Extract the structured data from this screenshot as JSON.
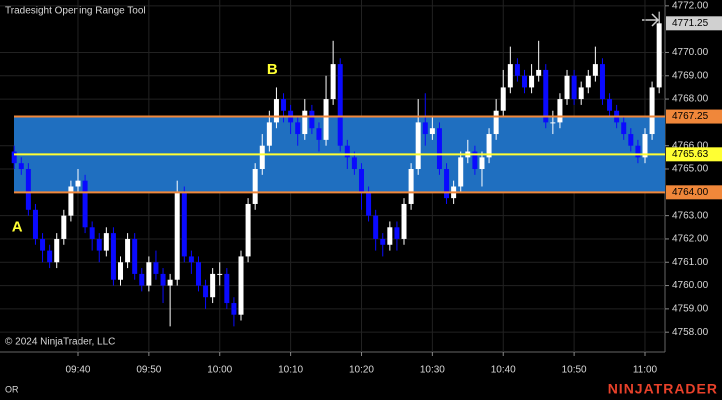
{
  "chart_data": {
    "type": "candlestick",
    "title": "Tradesight Opening Range Tool",
    "copyright": "© 2024 NinjaTrader, LLC",
    "footer_left": "OR",
    "brand": "NINJATRADER",
    "annotations": [
      {
        "text": "A",
        "x_index": 0,
        "y": 4762.5
      },
      {
        "text": "B",
        "x_index": 36,
        "y": 4769.25
      }
    ],
    "categories": [
      null,
      null,
      null,
      null,
      null,
      null,
      null,
      null,
      null,
      "09:40",
      null,
      null,
      null,
      null,
      null,
      null,
      null,
      null,
      null,
      "09:50",
      null,
      null,
      null,
      null,
      null,
      null,
      null,
      null,
      null,
      "10:00",
      null,
      null,
      null,
      null,
      null,
      null,
      null,
      null,
      null,
      "10:10",
      null,
      null,
      null,
      null,
      null,
      null,
      null,
      null,
      null,
      "10:20",
      null,
      null,
      null,
      null,
      null,
      null,
      null,
      null,
      null,
      "10:30",
      null,
      null,
      null,
      null,
      null,
      null,
      null,
      null,
      null,
      "10:40",
      null,
      null,
      null,
      null,
      null,
      null,
      null,
      null,
      null,
      "10:50",
      null,
      null,
      null,
      null,
      null,
      null,
      null,
      null,
      null,
      "11:00",
      null,
      null
    ],
    "open": [
      4765.75,
      4765.25,
      4765.0,
      4763.25,
      4762.0,
      4761.5,
      4761.0,
      4762.0,
      4763.0,
      4764.25,
      4764.5,
      4762.5,
      4762.0,
      4761.5,
      4762.25,
      4760.25,
      4761.0,
      4762.0,
      4760.5,
      4760.0,
      4761.0,
      4760.5,
      4760.0,
      4760.25,
      4764.0,
      4761.25,
      4761.0,
      4760.0,
      4759.5,
      4760.5,
      4760.5,
      4759.25,
      4758.75,
      4761.25,
      4763.5,
      4765.0,
      4766.0,
      4767.0,
      4768.0,
      4767.5,
      4767.0,
      4766.5,
      4767.5,
      4766.75,
      4766.25,
      4768.0,
      4769.5,
      4766.0,
      4765.5,
      4765.0,
      4764.0,
      4763.0,
      4762.0,
      4761.75,
      4762.5,
      4762.0,
      4763.5,
      4765.0,
      4767.0,
      4766.5,
      4766.75,
      4765.0,
      4763.75,
      4764.25,
      4765.5,
      4765.75,
      4765.0,
      4765.5,
      4766.5,
      4767.5,
      4768.5,
      4769.5,
      4769.0,
      4768.5,
      4769.0,
      4769.25,
      4767.0,
      4767.0,
      4768.0,
      4769.0,
      4768.0,
      4768.5,
      4769.0,
      4769.5,
      4768.0,
      4767.5,
      4767.0,
      4766.5,
      4766.0,
      4765.5,
      4766.5,
      4768.5
    ],
    "high": [
      4766.0,
      4765.5,
      4765.25,
      4763.5,
      4762.25,
      4761.75,
      4762.25,
      4763.25,
      4764.5,
      4765.0,
      4764.75,
      4762.75,
      4762.25,
      4762.5,
      4762.5,
      4761.25,
      4762.25,
      4762.25,
      4760.75,
      4761.25,
      4761.5,
      4760.75,
      4760.5,
      4764.5,
      4764.25,
      4761.5,
      4761.25,
      4760.25,
      4760.75,
      4761.0,
      4760.75,
      4759.5,
      4761.5,
      4763.75,
      4765.25,
      4766.5,
      4767.5,
      4768.5,
      4768.25,
      4767.75,
      4767.25,
      4768.0,
      4767.75,
      4767.0,
      4769.0,
      4770.5,
      4769.75,
      4766.25,
      4765.75,
      4765.25,
      4764.25,
      4763.25,
      4762.25,
      4762.75,
      4762.75,
      4763.75,
      4765.25,
      4768.0,
      4768.25,
      4767.25,
      4767.0,
      4765.25,
      4764.5,
      4765.75,
      4766.25,
      4766.0,
      4765.75,
      4766.75,
      4768.0,
      4769.25,
      4770.25,
      4769.75,
      4769.25,
      4769.5,
      4770.5,
      4769.5,
      4767.5,
      4768.25,
      4769.25,
      4769.25,
      4768.75,
      4769.25,
      4770.25,
      4769.75,
      4768.25,
      4767.75,
      4767.25,
      4766.75,
      4766.25,
      4766.75,
      4768.75,
      4771.75
    ],
    "low": [
      4765.0,
      4764.75,
      4763.0,
      4761.75,
      4761.0,
      4760.75,
      4760.75,
      4761.75,
      4762.75,
      4764.0,
      4762.25,
      4761.5,
      4761.0,
      4761.25,
      4760.0,
      4760.0,
      4760.75,
      4760.25,
      4759.75,
      4759.75,
      4760.25,
      4759.25,
      4758.25,
      4760.0,
      4761.0,
      4760.5,
      4759.75,
      4759.0,
      4759.25,
      4760.0,
      4759.0,
      4758.25,
      4758.5,
      4761.0,
      4763.25,
      4764.75,
      4765.75,
      4766.75,
      4767.0,
      4766.5,
      4766.0,
      4766.25,
      4766.5,
      4765.75,
      4766.0,
      4767.75,
      4765.75,
      4765.0,
      4764.75,
      4763.25,
      4762.75,
      4761.5,
      4761.25,
      4761.5,
      4761.5,
      4761.75,
      4763.25,
      4764.75,
      4766.0,
      4766.25,
      4764.75,
      4763.5,
      4763.5,
      4764.0,
      4765.25,
      4764.75,
      4764.25,
      4765.25,
      4766.25,
      4767.25,
      4768.25,
      4768.75,
      4768.25,
      4768.25,
      4768.75,
      4766.75,
      4766.5,
      4766.75,
      4767.75,
      4767.75,
      4767.75,
      4768.25,
      4768.75,
      4767.75,
      4767.25,
      4766.75,
      4766.25,
      4765.75,
      4765.25,
      4765.25,
      4766.25,
      4768.25
    ],
    "close": [
      4765.25,
      4765.0,
      4763.25,
      4762.0,
      4761.5,
      4761.0,
      4762.0,
      4763.0,
      4764.25,
      4764.5,
      4762.5,
      4762.0,
      4761.5,
      4762.25,
      4760.25,
      4761.0,
      4762.0,
      4760.5,
      4760.0,
      4761.0,
      4760.5,
      4760.0,
      4760.25,
      4764.0,
      4761.25,
      4761.0,
      4760.0,
      4759.5,
      4760.5,
      4760.5,
      4759.25,
      4758.75,
      4761.25,
      4763.5,
      4765.0,
      4766.0,
      4767.0,
      4768.0,
      4767.5,
      4767.0,
      4766.5,
      4767.5,
      4766.75,
      4766.25,
      4768.0,
      4769.5,
      4766.0,
      4765.5,
      4765.0,
      4764.0,
      4763.0,
      4762.0,
      4761.75,
      4762.5,
      4762.0,
      4763.5,
      4765.0,
      4767.0,
      4766.5,
      4766.75,
      4765.0,
      4763.75,
      4764.25,
      4765.5,
      4765.75,
      4765.0,
      4765.5,
      4766.5,
      4767.5,
      4768.5,
      4769.5,
      4769.0,
      4768.5,
      4769.0,
      4769.25,
      4767.0,
      4767.0,
      4768.0,
      4769.0,
      4768.0,
      4768.5,
      4769.0,
      4769.5,
      4768.0,
      4767.5,
      4767.0,
      4766.5,
      4766.0,
      4765.5,
      4766.5,
      4768.5,
      4771.25
    ],
    "up_color": "#ffffff",
    "down_color": "#0a0aff",
    "levels": {
      "values": [
        4767.25,
        4765.63,
        {
          "value": 4764.0,
          "label": "4764.00"
        }
      ],
      "colors": [
        "#f0873a",
        "#ffff33",
        "#f0873a"
      ]
    },
    "band_color": "#1f6fc0",
    "ylim": [
      4757.15,
      4772.25
    ],
    "yticks": [
      {
        "value": 4758,
        "label": "4758.00"
      },
      {
        "value": 4759,
        "label": "4759.00"
      },
      {
        "value": 4760,
        "label": "4760.00"
      },
      {
        "value": 4761,
        "label": "4761.00"
      },
      {
        "value": 4762,
        "label": "4762.00"
      },
      {
        "value": 4763,
        "label": "4763.00"
      },
      {
        "value": 4765,
        "label": "4765.00"
      },
      {
        "value": 4766,
        "label": "4766.00"
      },
      {
        "value": 4768,
        "label": "4768.00"
      },
      {
        "value": 4769,
        "label": "4769.00"
      },
      {
        "value": 4770,
        "label": "4770.00"
      },
      {
        "value": 4772,
        "label": "4772.00"
      }
    ],
    "grid": true
  }
}
